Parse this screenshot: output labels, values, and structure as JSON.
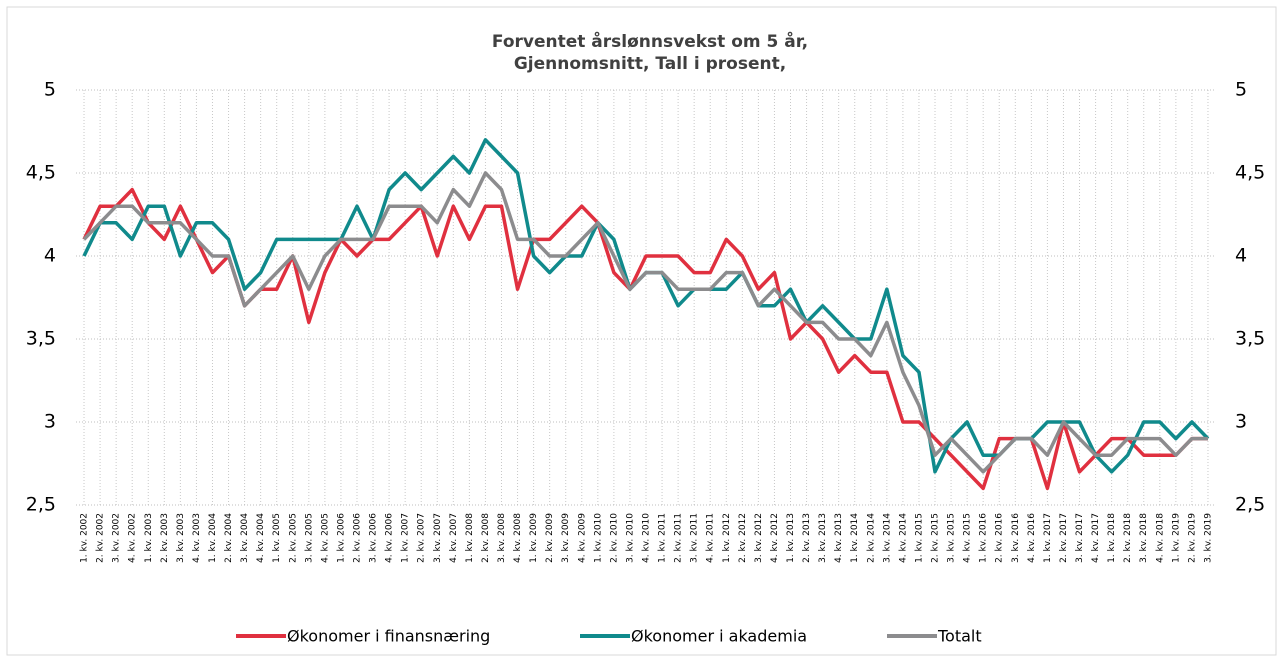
{
  "chart_data": {
    "type": "line",
    "title": [
      "Forventet årslønnsvekst om 5 år,",
      "Gjennomsnitt, Tall i prosent,"
    ],
    "categories": [
      "1. kv. 2002",
      "2. kv. 2002",
      "3. kv. 2002",
      "4. kv. 2002",
      "1. kv. 2003",
      "2. kv. 2003",
      "3. kv. 2003",
      "4. kv. 2003",
      "1. kv. 2004",
      "2. kv. 2004",
      "3. kv. 2004",
      "4. kv. 2004",
      "1. kv. 2005",
      "2. kv. 2005",
      "3. kv. 2005",
      "4. kv. 2005",
      "1. kv. 2006",
      "2. kv. 2006",
      "3. kv. 2006",
      "4. kv. 2006",
      "1. kv. 2007",
      "2. kv. 2007",
      "3. kv. 2007",
      "4. kv. 2007",
      "1. kv. 2008",
      "2. kv. 2008",
      "3. kv. 2008",
      "4. kv. 2008",
      "1. kv. 2009",
      "2. kv. 2009",
      "3. kv. 2009",
      "4. kv. 2009",
      "1. kv. 2010",
      "2. kv. 2010",
      "3. kv. 2010",
      "4. kv. 2010",
      "1. kv. 2011",
      "2. kv. 2011",
      "3. kv. 2011",
      "4. kv. 2011",
      "1. kv. 2012",
      "2. kv. 2012",
      "3. kv. 2012",
      "4. kv. 2012",
      "1. kv. 2013",
      "2. kv. 2013",
      "3. kv. 2013",
      "4. kv. 2013",
      "1. kv. 2014",
      "2. kv. 2014",
      "3. kv. 2014",
      "4. kv. 2014",
      "1. kv. 2015",
      "2. kv. 2015",
      "3. kv. 2015",
      "4. kv. 2015",
      "1. kv. 2016",
      "2. kv. 2016",
      "3. kv. 2016",
      "4. kv. 2016",
      "1. kv. 2017",
      "2. kv. 2017",
      "3. kv. 2017",
      "4. kv. 2017",
      "1. kv. 2018",
      "2. kv. 2018",
      "3. kv. 2018",
      "4. kv. 2018",
      "1. kv. 2019",
      "2. kv. 2019",
      "3. kv. 2019"
    ],
    "series": [
      {
        "name": "Økonomer i finansnæring",
        "color": "#e0303f",
        "values": [
          4.1,
          4.3,
          4.3,
          4.4,
          4.2,
          4.1,
          4.3,
          4.1,
          3.9,
          4.0,
          3.7,
          3.8,
          3.8,
          4.0,
          3.6,
          3.9,
          4.1,
          4.0,
          4.1,
          4.1,
          4.2,
          4.3,
          4.0,
          4.3,
          4.1,
          4.3,
          4.3,
          3.8,
          4.1,
          4.1,
          4.2,
          4.3,
          4.2,
          3.9,
          3.8,
          4.0,
          4.0,
          4.0,
          3.9,
          3.9,
          4.1,
          4.0,
          3.8,
          3.9,
          3.5,
          3.6,
          3.5,
          3.3,
          3.4,
          3.3,
          3.3,
          3.0,
          3.0,
          2.9,
          2.8,
          2.7,
          2.6,
          2.9,
          2.9,
          2.9,
          2.6,
          3.0,
          2.7,
          2.8,
          2.9,
          2.9,
          2.8,
          2.8,
          2.8,
          2.9,
          2.9
        ]
      },
      {
        "name": "Økonomer i akademia",
        "color": "#108a8c",
        "values": [
          4.0,
          4.2,
          4.2,
          4.1,
          4.3,
          4.3,
          4.0,
          4.2,
          4.2,
          4.1,
          3.8,
          3.9,
          4.1,
          4.1,
          4.1,
          4.1,
          4.1,
          4.3,
          4.1,
          4.4,
          4.5,
          4.4,
          4.5,
          4.6,
          4.5,
          4.7,
          4.6,
          4.5,
          4.0,
          3.9,
          4.0,
          4.0,
          4.2,
          4.1,
          3.8,
          3.9,
          3.9,
          3.7,
          3.8,
          3.8,
          3.8,
          3.9,
          3.7,
          3.7,
          3.8,
          3.6,
          3.7,
          3.6,
          3.5,
          3.5,
          3.8,
          3.4,
          3.3,
          2.7,
          2.9,
          3.0,
          2.8,
          2.8,
          2.9,
          2.9,
          3.0,
          3.0,
          3.0,
          2.8,
          2.7,
          2.8,
          3.0,
          3.0,
          2.9,
          3.0,
          2.9
        ]
      },
      {
        "name": "Totalt",
        "color": "#8c8c8e",
        "values": [
          4.1,
          4.2,
          4.3,
          4.3,
          4.2,
          4.2,
          4.2,
          4.1,
          4.0,
          4.0,
          3.7,
          3.8,
          3.9,
          4.0,
          3.8,
          4.0,
          4.1,
          4.1,
          4.1,
          4.3,
          4.3,
          4.3,
          4.2,
          4.4,
          4.3,
          4.5,
          4.4,
          4.1,
          4.1,
          4.0,
          4.0,
          4.1,
          4.2,
          4.0,
          3.8,
          3.9,
          3.9,
          3.8,
          3.8,
          3.8,
          3.9,
          3.9,
          3.7,
          3.8,
          3.7,
          3.6,
          3.6,
          3.5,
          3.5,
          3.4,
          3.6,
          3.3,
          3.1,
          2.8,
          2.9,
          2.8,
          2.7,
          2.8,
          2.9,
          2.9,
          2.8,
          3.0,
          2.9,
          2.8,
          2.8,
          2.9,
          2.9,
          2.9,
          2.8,
          2.9,
          2.9
        ]
      }
    ],
    "ylim": [
      2.5,
      5
    ],
    "yticks": [
      {
        "value": 2.5,
        "label": "2,5"
      },
      3,
      {
        "value": 3.5,
        "label": "3,5"
      },
      4,
      {
        "value": 4.5,
        "label": "4,5"
      },
      5
    ],
    "y2lim": [
      2.5,
      5
    ],
    "y2ticks": [
      {
        "value": 2.5,
        "label": "2,5"
      },
      3,
      {
        "value": 3.5,
        "label": "3,5"
      },
      4,
      {
        "value": 4.5,
        "label": "4,5"
      },
      5
    ],
    "grid": true,
    "legend": "bottom"
  }
}
